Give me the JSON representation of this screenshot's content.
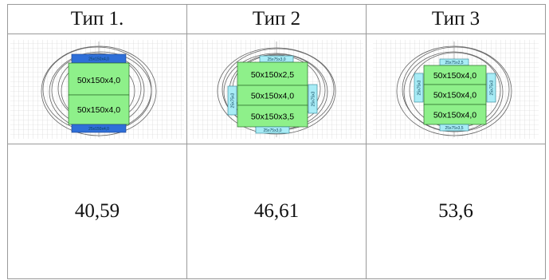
{
  "columns": [
    {
      "title": "Тип 1.",
      "value": "40,59",
      "main_labels": [
        "50x150x4,0",
        "50x150x4,0"
      ],
      "blue_labels": [
        "25x150x4,0",
        "25x150x4,0"
      ]
    },
    {
      "title": "Тип 2",
      "value": "46,61",
      "main_labels": [
        "50x150x2,5",
        "50x150x4,0",
        "50x150x3,5"
      ],
      "top_label": "25x75x3,0",
      "bottom_label": "25x75x3,0",
      "left_label": "25x75x3",
      "right_label": "25x75x3"
    },
    {
      "title": "Тип 3",
      "value": "53,6",
      "main_labels": [
        "50x150x4,0",
        "50x150x4,0",
        "50x150x4,0"
      ],
      "top_label": "25x75x2,5",
      "bottom_label": "25x75x3,5",
      "left_label": "25x75x3",
      "right_label": "25x75x3"
    }
  ],
  "colors": {
    "green": "#8ef08a",
    "blue": "#2f6fd8",
    "cyan": "#a8ecf6",
    "grid": "#cfcfcf",
    "ring": "#666666"
  }
}
